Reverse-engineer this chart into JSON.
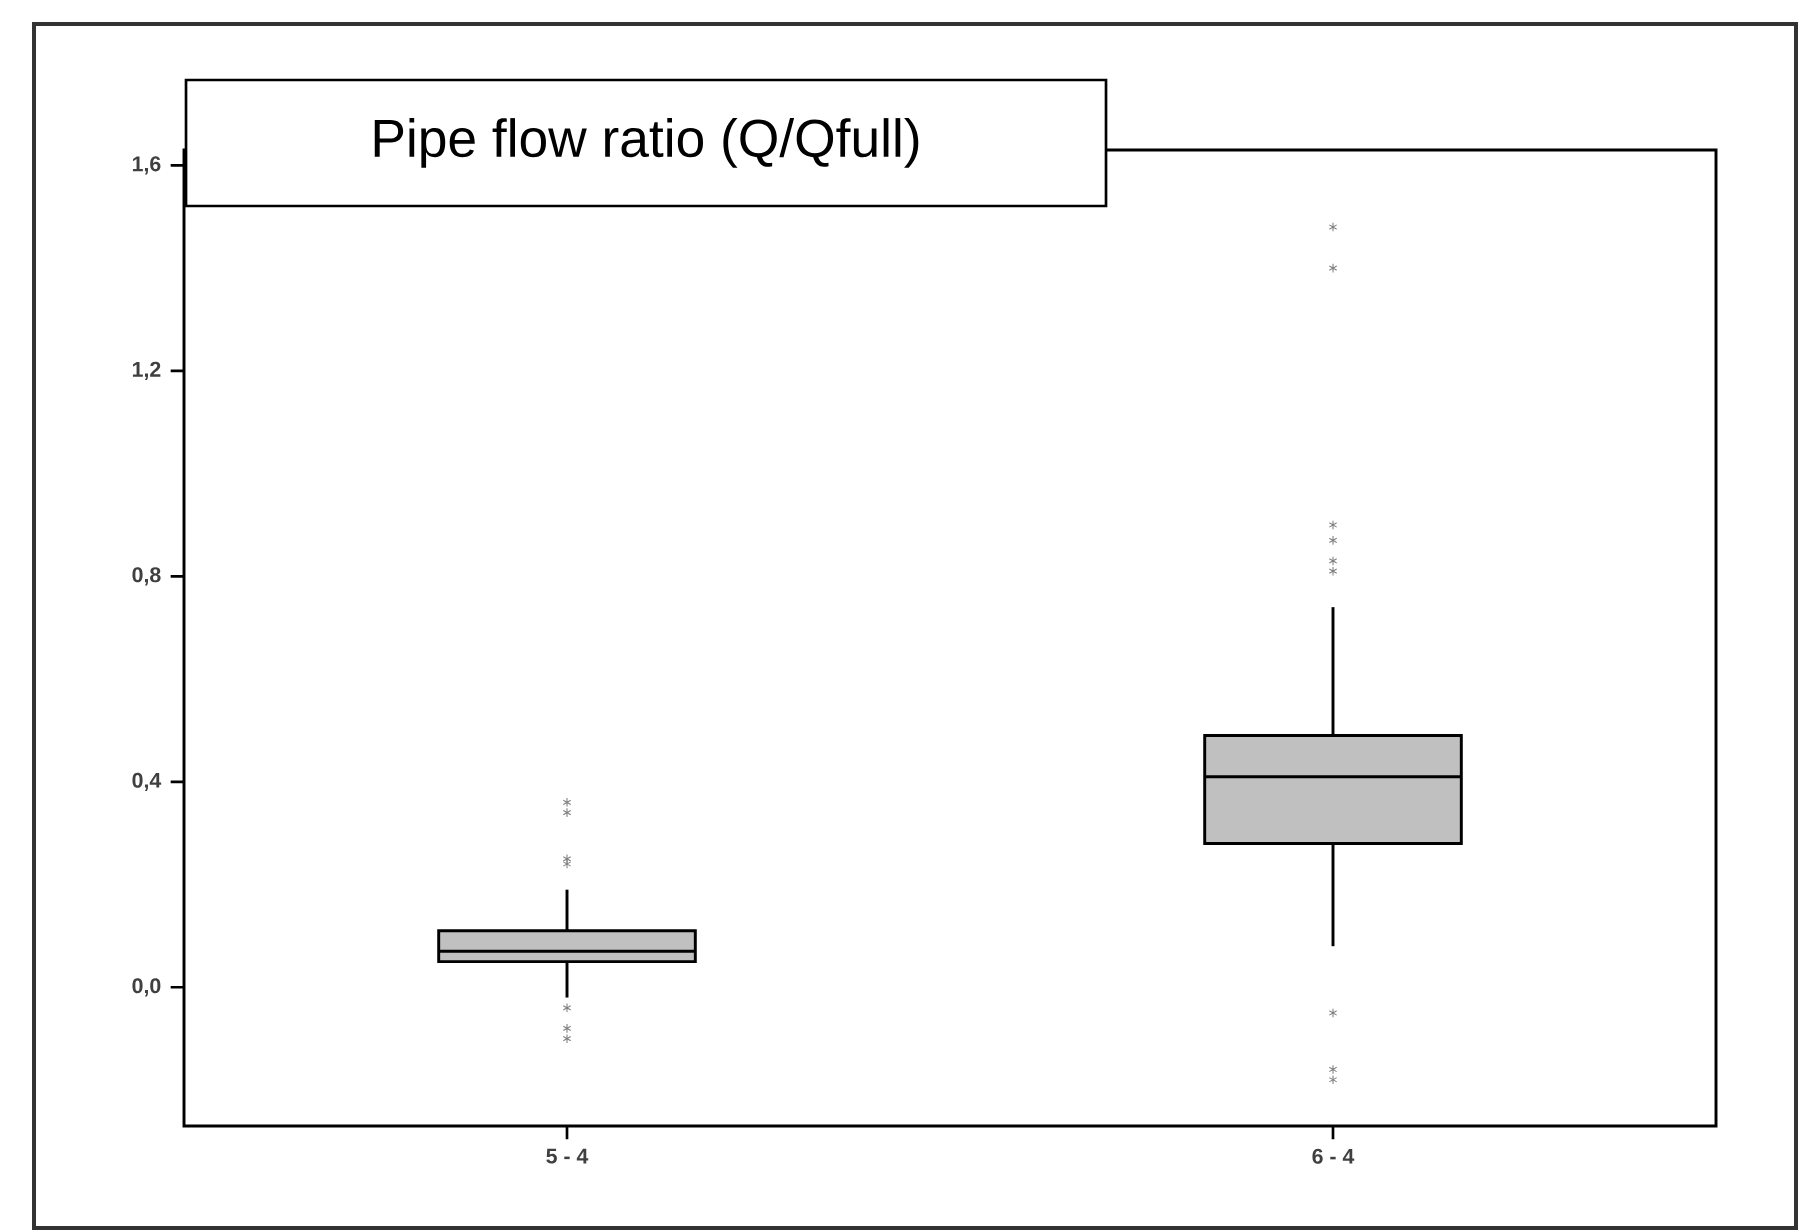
{
  "chart_data": {
    "type": "box",
    "title": "Pipe flow ratio (Q/Qfull)",
    "categories": [
      "5 - 4",
      "6 - 4"
    ],
    "color": "#c0c0c0",
    "boxes": [
      {
        "low": -0.02,
        "q1": 0.05,
        "median": 0.07,
        "q3": 0.11,
        "high": 0.19,
        "outliers": [
          0.36,
          0.34,
          0.25,
          0.24,
          -0.04,
          -0.08,
          -0.1
        ]
      },
      {
        "low": 0.08,
        "q1": 0.28,
        "median": 0.41,
        "q3": 0.49,
        "high": 0.74,
        "outliers": [
          1.48,
          1.4,
          0.9,
          0.87,
          0.83,
          0.81,
          -0.05,
          -0.16,
          -0.18
        ]
      }
    ],
    "ylim": [
      -0.27,
      1.63
    ],
    "yticks": [
      {
        "value": 0.0,
        "label": "0,0"
      },
      {
        "value": 0.4,
        "label": "0,4"
      },
      {
        "value": 0.8,
        "label": "0,8"
      },
      {
        "value": 1.2,
        "label": "1,2"
      },
      {
        "value": 1.6,
        "label": "1,6"
      }
    ]
  }
}
